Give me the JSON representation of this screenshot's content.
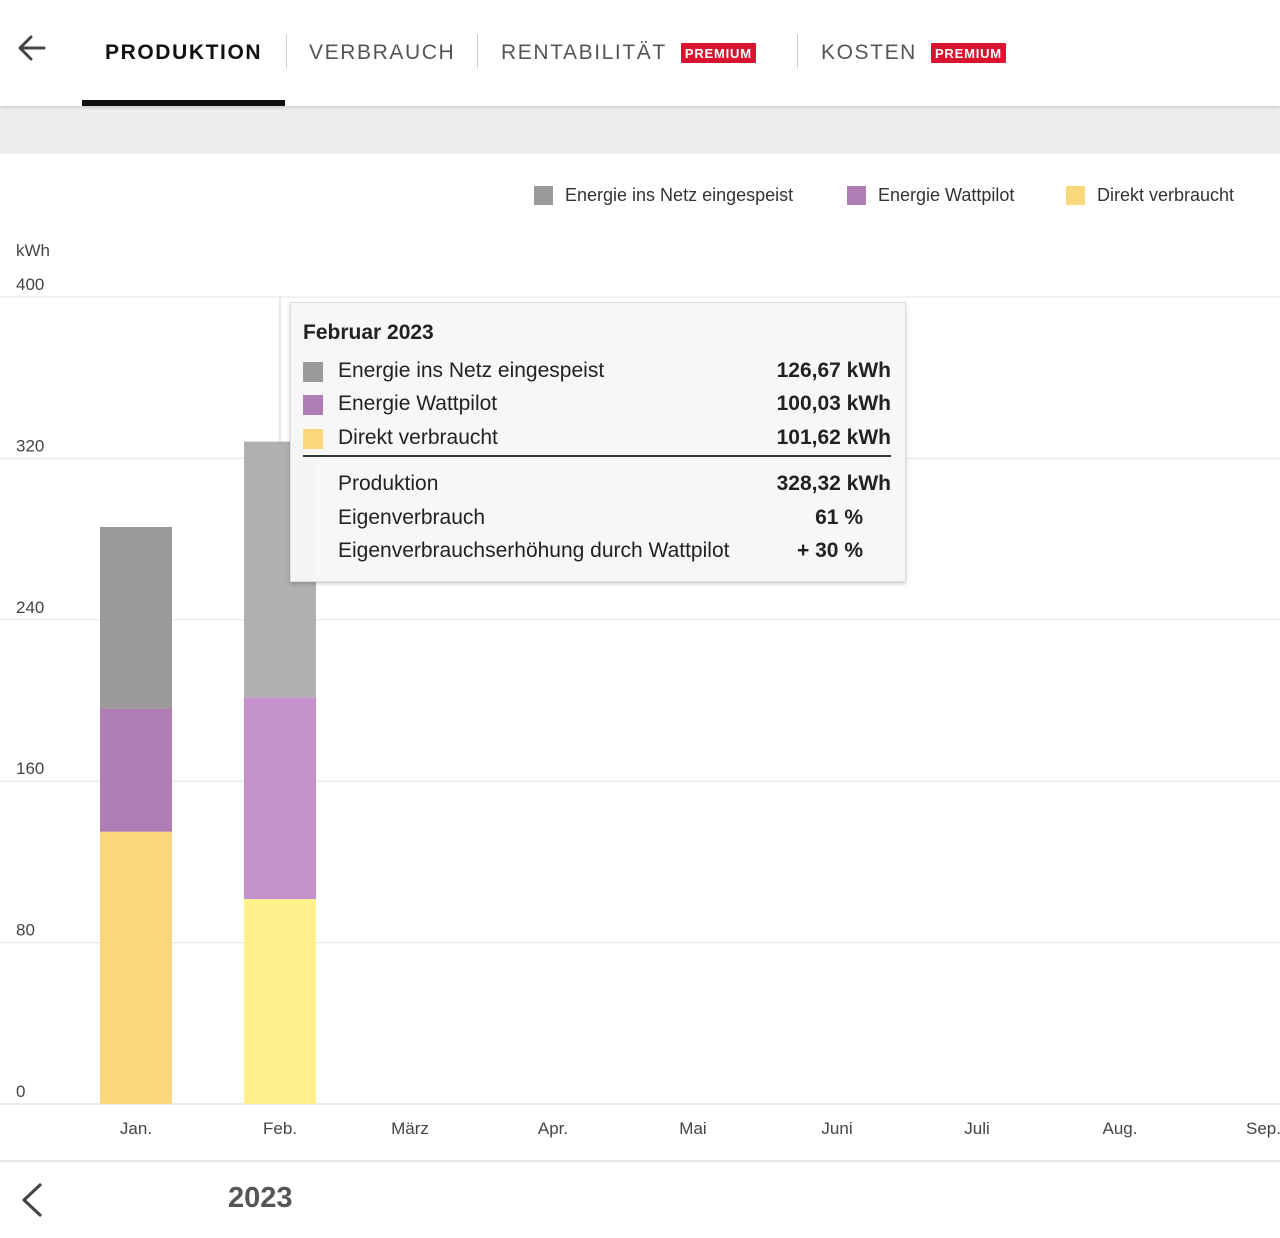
{
  "tabs": [
    {
      "label": "PRODUKTION",
      "active": true,
      "badge": ""
    },
    {
      "label": "VERBRAUCH",
      "active": false,
      "badge": ""
    },
    {
      "label": "RENTABILITÄT",
      "active": false,
      "badge": "PREMIUM"
    },
    {
      "label": "KOSTEN",
      "active": false,
      "badge": "PREMIUM"
    }
  ],
  "icons": {
    "back": "arrow-left-icon",
    "prev": "chevron-left-icon"
  },
  "colors": {
    "grid_feed": "#9a9a9a",
    "wattpilot": "#b07cb4",
    "direct": "#f8d87a",
    "badge": "#d81431",
    "hover_grid_feed": "#b0b0b0",
    "hover_wattpilot": "#c692cc",
    "hover_direct": "#fef08a"
  },
  "legend": [
    {
      "label": "Energie ins Netz eingespeist",
      "color": "#9a9a9a"
    },
    {
      "label": "Energie Wattpilot",
      "color": "#b07cb4"
    },
    {
      "label": "Direkt verbraucht",
      "color": "#f8d87a"
    }
  ],
  "chart_data": {
    "type": "bar",
    "stacked": true,
    "ylabel": "kWh",
    "ylim": [
      0,
      400
    ],
    "yticks": [
      0,
      80,
      160,
      240,
      320,
      400
    ],
    "categories": [
      "Jan.",
      "Feb.",
      "März",
      "Apr.",
      "Mai",
      "Juni",
      "Juli",
      "Aug.",
      "Sep."
    ],
    "series": [
      {
        "name": "Direkt verbraucht",
        "values": [
          135,
          101.62,
          null,
          null,
          null,
          null,
          null,
          null,
          null
        ]
      },
      {
        "name": "Energie Wattpilot",
        "values": [
          61,
          100.03,
          null,
          null,
          null,
          null,
          null,
          null,
          null
        ]
      },
      {
        "name": "Energie ins Netz eingespeist",
        "values": [
          90,
          126.67,
          null,
          null,
          null,
          null,
          null,
          null,
          null
        ]
      }
    ],
    "highlighted_category": "Feb.",
    "grid": true,
    "legend_position": "top-right"
  },
  "tooltip": {
    "title": "Februar 2023",
    "rows": [
      {
        "label": "Energie ins Netz eingespeist",
        "value": "126,67 kWh"
      },
      {
        "label": "Energie Wattpilot",
        "value": "100,03 kWh"
      },
      {
        "label": "Direkt verbraucht",
        "value": "101,62 kWh"
      }
    ],
    "summary": [
      {
        "label": "Produktion",
        "value": "328,32 kWh"
      },
      {
        "label": "Eigenverbrauch",
        "value": "61 %"
      },
      {
        "label": "Eigenverbrauchserhöhung durch Wattpilot",
        "value": "+ 30 %"
      }
    ]
  },
  "footer": {
    "year": "2023"
  }
}
